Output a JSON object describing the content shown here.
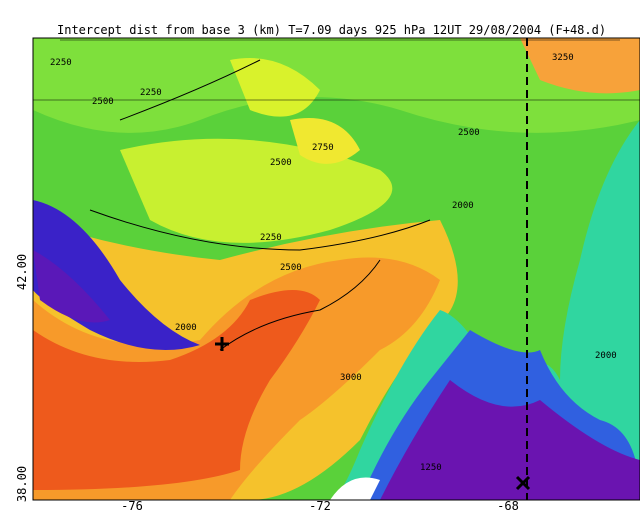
{
  "title": "Intercept dist from base 3 (km)  T=7.09 days  925 hPa  12UT 29/08/2004  (F+48.d)",
  "x_axis": {
    "labels": [
      "-76",
      "-72",
      "-68"
    ]
  },
  "y_axis": {
    "labels": [
      "42.00",
      "38.00"
    ]
  },
  "contour_labels": [
    "2250",
    "2500",
    "2250",
    "2750",
    "2500",
    "2000",
    "3250",
    "2500",
    "2250",
    "2000",
    "1250",
    "3000",
    "2500",
    "2000"
  ]
}
